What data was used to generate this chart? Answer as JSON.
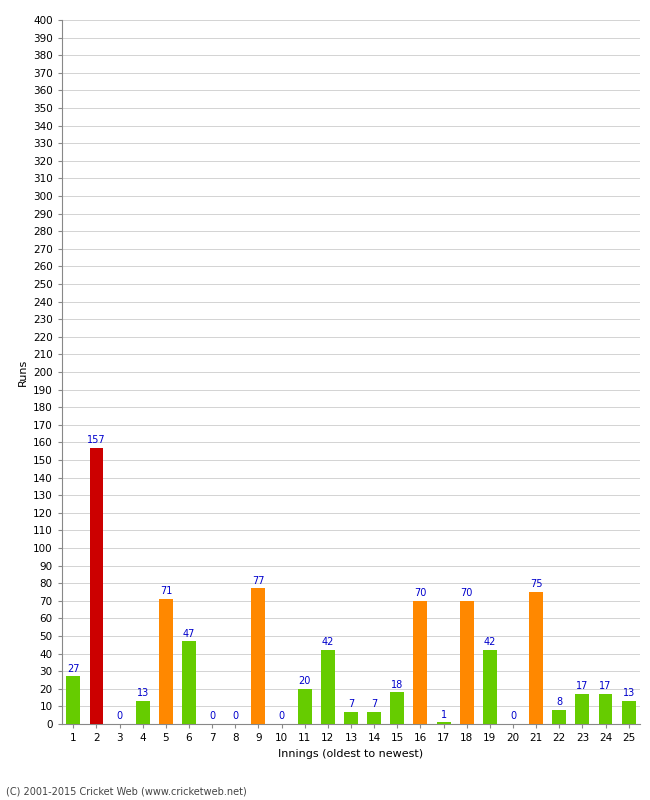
{
  "innings": [
    1,
    2,
    3,
    4,
    5,
    6,
    7,
    8,
    9,
    10,
    11,
    12,
    13,
    14,
    15,
    16,
    17,
    18,
    19,
    20,
    21,
    22,
    23,
    24,
    25
  ],
  "values": [
    27,
    157,
    0,
    13,
    71,
    47,
    0,
    0,
    77,
    0,
    20,
    42,
    7,
    7,
    18,
    70,
    1,
    70,
    42,
    0,
    75,
    8,
    17,
    17,
    13
  ],
  "colors": [
    "#66cc00",
    "#cc0000",
    "#66cc00",
    "#66cc00",
    "#ff8800",
    "#66cc00",
    "#66cc00",
    "#66cc00",
    "#ff8800",
    "#66cc00",
    "#66cc00",
    "#66cc00",
    "#66cc00",
    "#66cc00",
    "#66cc00",
    "#ff8800",
    "#66cc00",
    "#ff8800",
    "#66cc00",
    "#66cc00",
    "#ff8800",
    "#66cc00",
    "#66cc00",
    "#66cc00",
    "#66cc00"
  ],
  "xlabel": "Innings (oldest to newest)",
  "ylabel": "Runs",
  "ylim": [
    0,
    400
  ],
  "ytick_step": 10,
  "ytick_label_step": 10,
  "footer": "(C) 2001-2015 Cricket Web (www.cricketweb.net)",
  "label_color": "#0000cc",
  "label_fontsize": 7,
  "axis_label_fontsize": 8,
  "tick_fontsize": 7.5,
  "bar_width": 0.6
}
